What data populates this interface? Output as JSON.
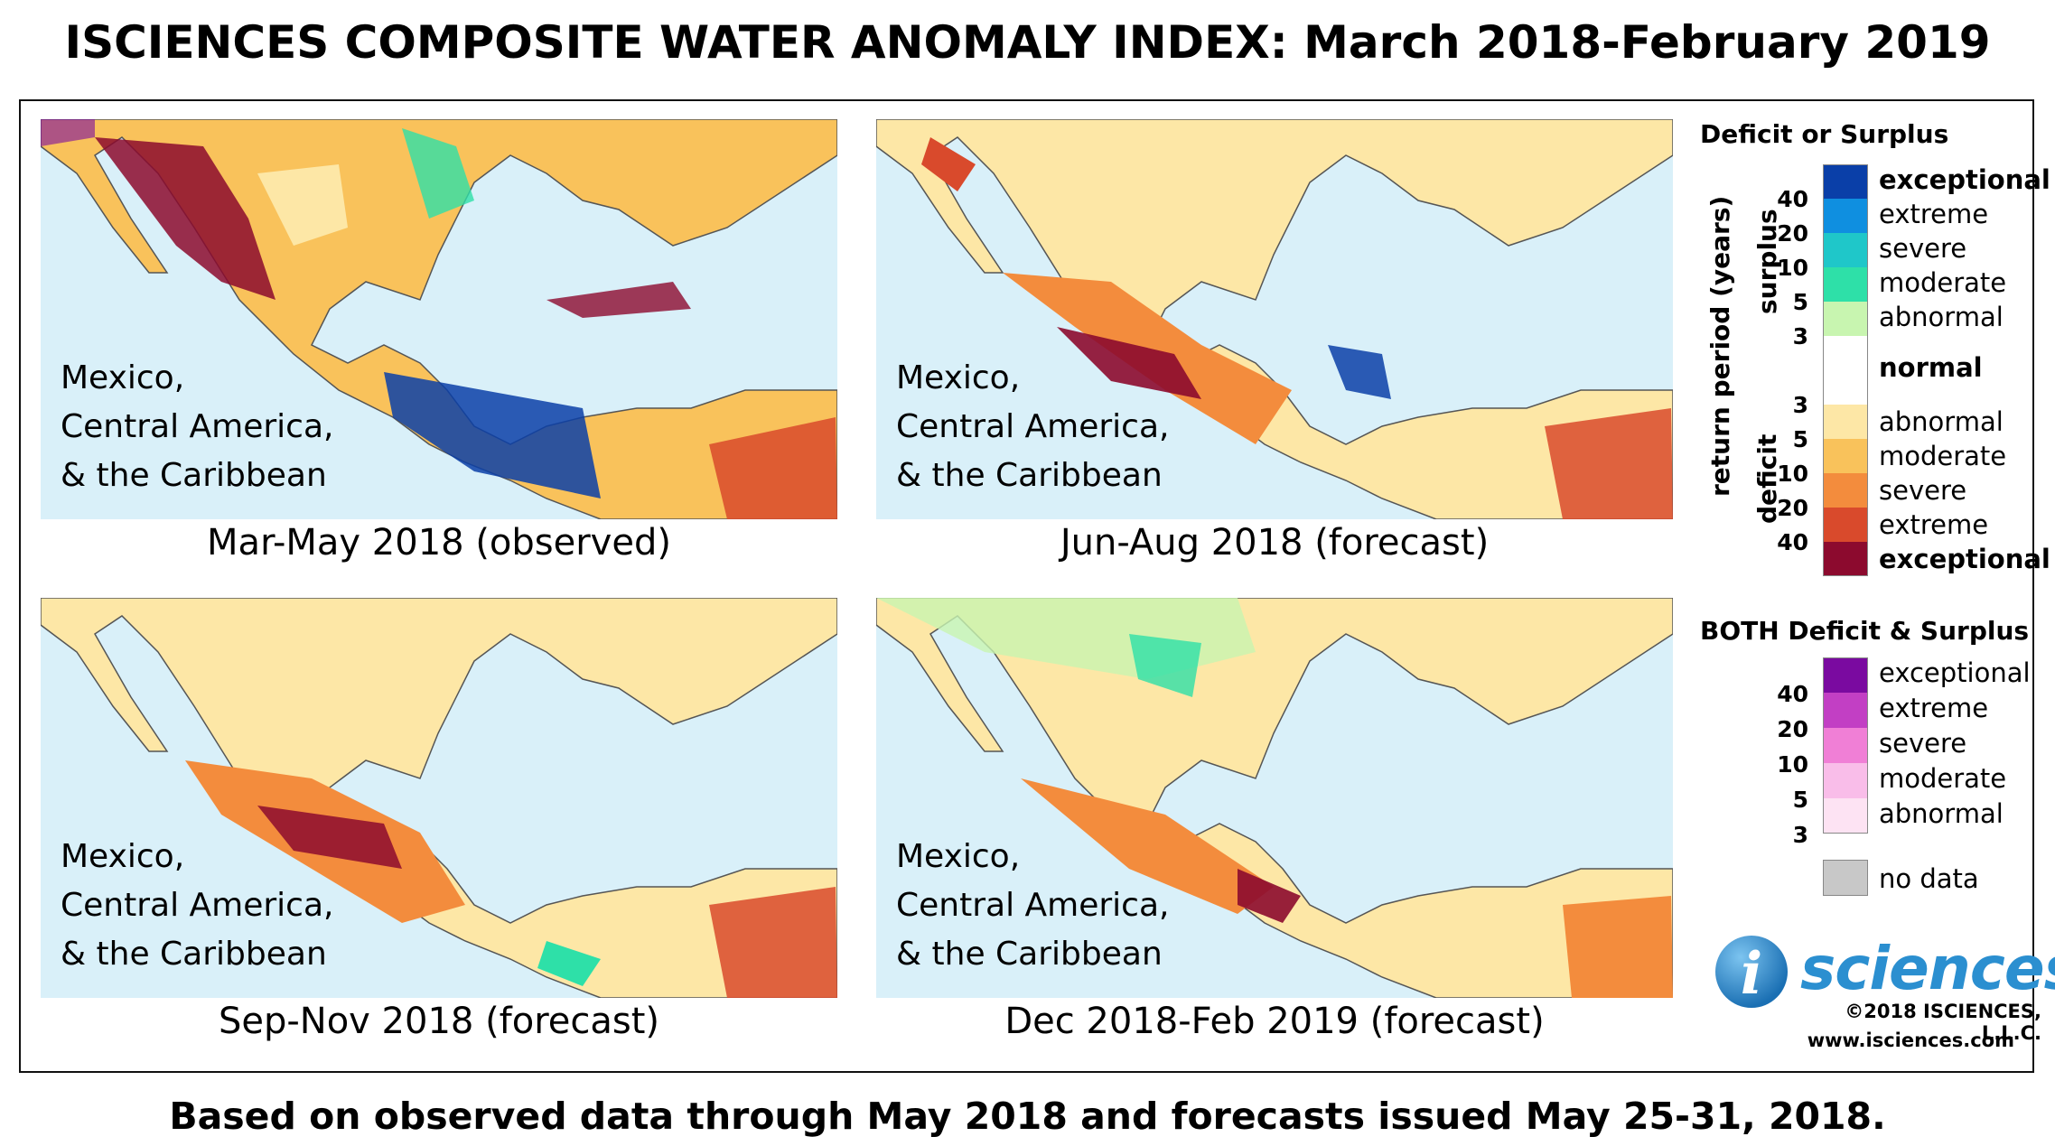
{
  "title": "ISCIENCES COMPOSITE WATER ANOMALY INDEX: March 2018-February 2019",
  "footer": "Based on observed data through May 2018 and forecasts issued May 25-31, 2018.",
  "panels": [
    {
      "region_lines": [
        "Mexico,",
        "Central America,",
        "& the Caribbean"
      ],
      "caption": "Mar-May 2018 (observed)"
    },
    {
      "region_lines": [
        "Mexico,",
        "Central America,",
        "& the Caribbean"
      ],
      "caption": "Jun-Aug 2018 (forecast)"
    },
    {
      "region_lines": [
        "Mexico,",
        "Central America,",
        "& the Caribbean"
      ],
      "caption": "Sep-Nov 2018 (forecast)"
    },
    {
      "region_lines": [
        "Mexico,",
        "Central America,",
        "& the Caribbean"
      ],
      "caption": "Dec 2018-Feb 2019 (forecast)"
    }
  ],
  "legend": {
    "deficit_surplus_title": "Deficit or Surplus",
    "axis_label": "return period (years)",
    "surplus_label": "surplus",
    "deficit_label": "deficit",
    "surplus_classes": [
      {
        "label": "exceptional",
        "color": "#0a3fa8",
        "bold": true
      },
      {
        "label": "extreme",
        "color": "#0f8fe0",
        "bold": false
      },
      {
        "label": "severe",
        "color": "#1fc7c9",
        "bold": false
      },
      {
        "label": "moderate",
        "color": "#2ee0a8",
        "bold": false
      },
      {
        "label": "abnormal",
        "color": "#c8f5b0",
        "bold": false
      }
    ],
    "normal": {
      "label": "normal",
      "color": "#ffffff"
    },
    "deficit_classes": [
      {
        "label": "abnormal",
        "color": "#fde7a6",
        "bold": false
      },
      {
        "label": "moderate",
        "color": "#f9c25b",
        "bold": false
      },
      {
        "label": "severe",
        "color": "#f38c3d",
        "bold": false
      },
      {
        "label": "extreme",
        "color": "#d94a2c",
        "bold": false
      },
      {
        "label": "exceptional",
        "color": "#8c0a2e",
        "bold": true
      }
    ],
    "surplus_ticks": [
      "40",
      "20",
      "10",
      "5",
      "3"
    ],
    "deficit_ticks": [
      "3",
      "5",
      "10",
      "20",
      "40"
    ],
    "both_title": "BOTH Deficit & Surplus",
    "both_classes": [
      {
        "label": "exceptional",
        "color": "#7a0aa0"
      },
      {
        "label": "extreme",
        "color": "#c23fc4"
      },
      {
        "label": "severe",
        "color": "#f07fd6"
      },
      {
        "label": "moderate",
        "color": "#f9bde9"
      },
      {
        "label": "abnormal",
        "color": "#fde3f3"
      }
    ],
    "both_ticks": [
      "40",
      "20",
      "10",
      "5",
      "3"
    ],
    "no_data": {
      "label": "no data",
      "color": "#c8c8c8"
    }
  },
  "logo": {
    "letter": "i",
    "word": "sciences"
  },
  "copyright": "©2018 ISCIENCES, L.L.C.",
  "website": "www.isciences.com"
}
